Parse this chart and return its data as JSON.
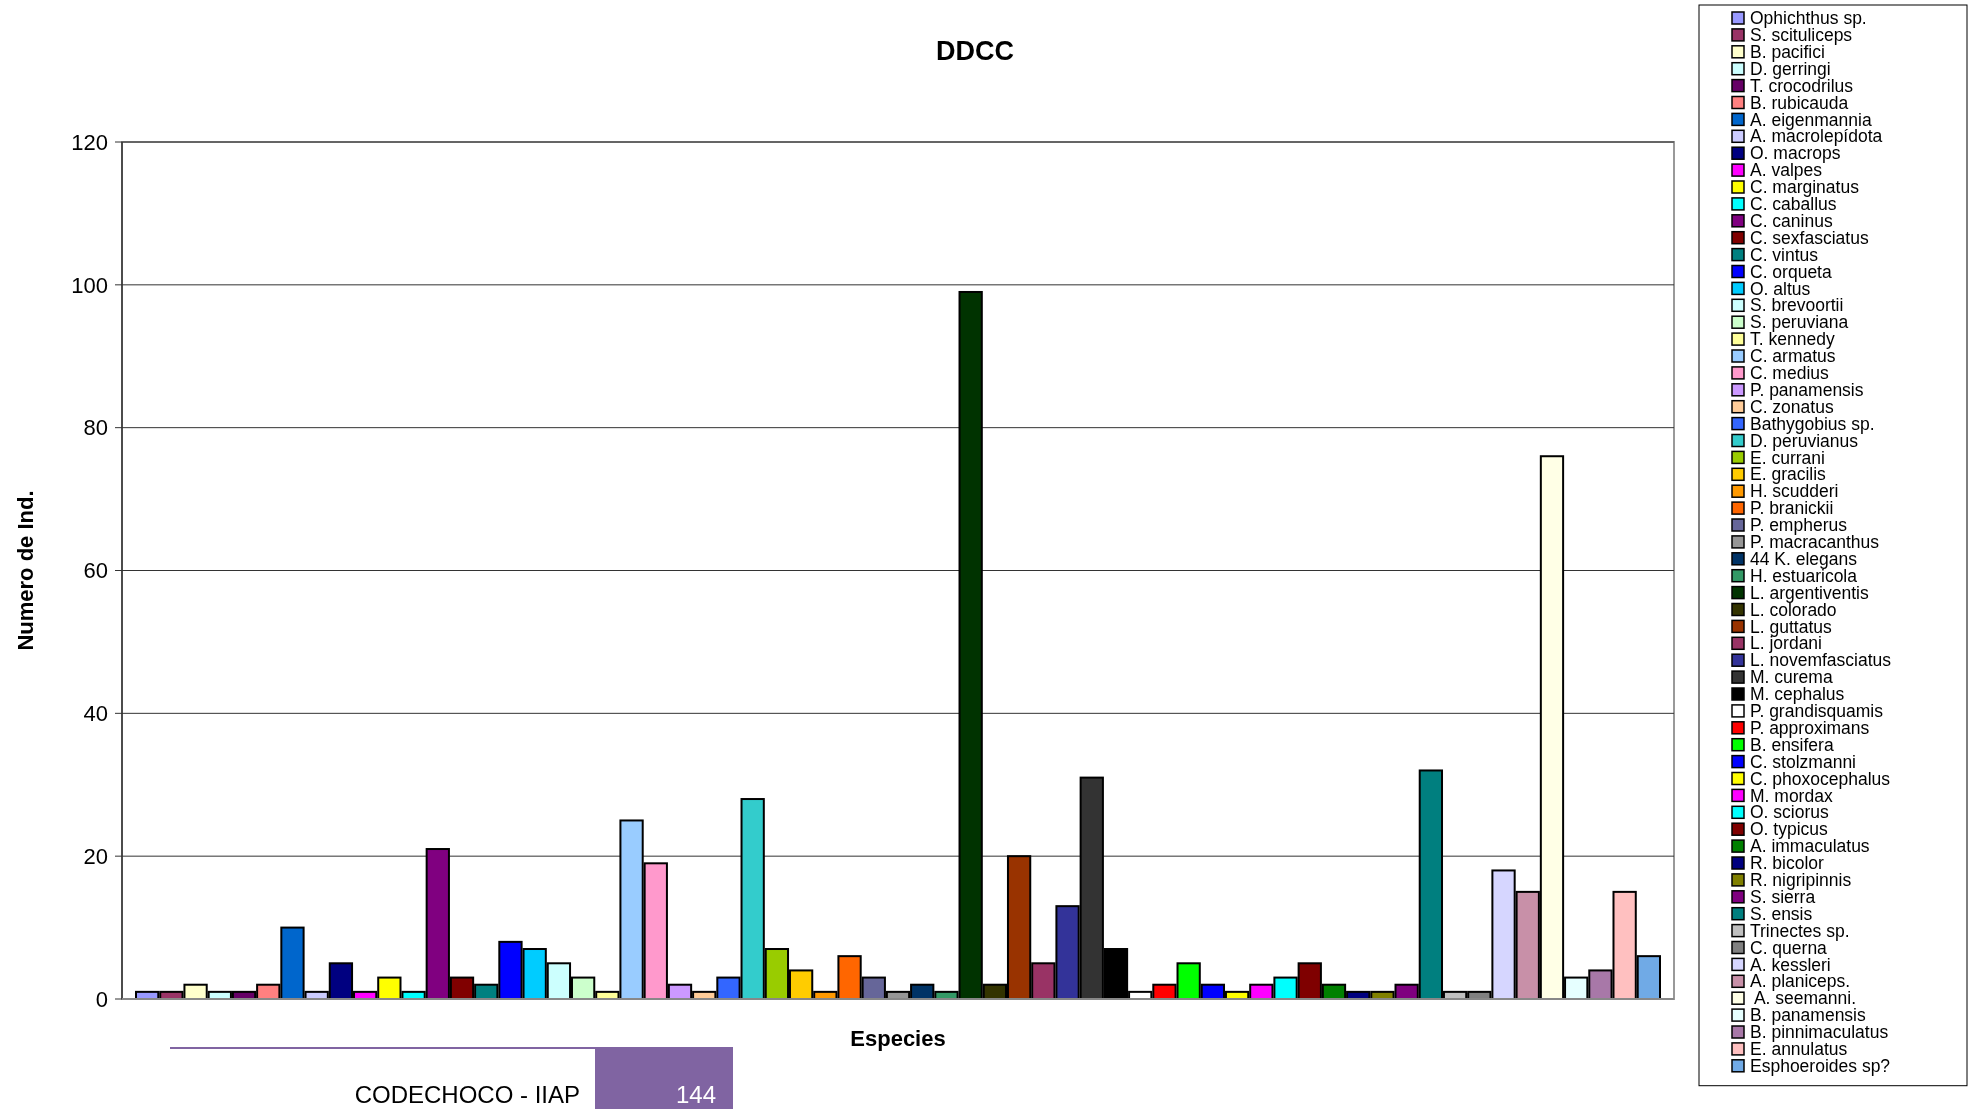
{
  "chart_data": {
    "type": "bar",
    "title": "DDCC",
    "xlabel": "Especies",
    "ylabel": "Numero de Ind.",
    "categories": [
      null
    ],
    "ylim": [
      0,
      120
    ],
    "yticks": [
      0,
      20,
      40,
      60,
      80,
      100,
      120
    ],
    "grid": "y",
    "legend": "right",
    "annotations": [
      "CODECHOCO - IIAP",
      "144"
    ],
    "series": [
      {
        "name": "Ophichthus sp.",
        "color": "#9999ff",
        "values": [
          1
        ]
      },
      {
        "name": "S. scituliceps",
        "color": "#993366",
        "values": [
          1
        ]
      },
      {
        "name": "B. pacifici",
        "color": "#ffffcc",
        "values": [
          2
        ]
      },
      {
        "name": "D. gerringi",
        "color": "#ccffff",
        "values": [
          1
        ]
      },
      {
        "name": "T. crocodrilus",
        "color": "#660066",
        "values": [
          1
        ]
      },
      {
        "name": "B. rubicauda",
        "color": "#ff8080",
        "values": [
          2
        ]
      },
      {
        "name": "A. eigenmannia",
        "color": "#0066cc",
        "values": [
          10
        ]
      },
      {
        "name": "A. macrolepídota",
        "color": "#ccccff",
        "values": [
          1
        ]
      },
      {
        "name": "O. macrops",
        "color": "#000080",
        "values": [
          5
        ]
      },
      {
        "name": "A. valpes",
        "color": "#ff00ff",
        "values": [
          1
        ]
      },
      {
        "name": "C. marginatus",
        "color": "#ffff00",
        "values": [
          3
        ]
      },
      {
        "name": "C. caballus",
        "color": "#00ffff",
        "values": [
          1
        ]
      },
      {
        "name": "C. caninus",
        "color": "#800080",
        "values": [
          21
        ]
      },
      {
        "name": "C. sexfasciatus",
        "color": "#800000",
        "values": [
          3
        ]
      },
      {
        "name": "C. vintus",
        "color": "#008080",
        "values": [
          2
        ]
      },
      {
        "name": "C. orqueta",
        "color": "#0000ff",
        "values": [
          8
        ]
      },
      {
        "name": "O. altus",
        "color": "#00ccff",
        "values": [
          7
        ]
      },
      {
        "name": "S. brevoortii",
        "color": "#ccfffe",
        "values": [
          5
        ]
      },
      {
        "name": "S. peruviana",
        "color": "#ccffcc",
        "values": [
          3
        ]
      },
      {
        "name": "T. kennedy",
        "color": "#ffff99",
        "values": [
          1
        ]
      },
      {
        "name": "C. armatus",
        "color": "#99ccff",
        "values": [
          25
        ]
      },
      {
        "name": "C. medius",
        "color": "#ff99cc",
        "values": [
          19
        ]
      },
      {
        "name": "P. panamensis",
        "color": "#cc99ff",
        "values": [
          2
        ]
      },
      {
        "name": "C. zonatus",
        "color": "#ffcc99",
        "values": [
          1
        ]
      },
      {
        "name": "Bathygobius sp.",
        "color": "#3366ff",
        "values": [
          3
        ]
      },
      {
        "name": "D. peruvianus",
        "color": "#33cccc",
        "values": [
          28
        ]
      },
      {
        "name": "E. currani",
        "color": "#99cc00",
        "values": [
          7
        ]
      },
      {
        "name": "E. gracilis",
        "color": "#ffcc00",
        "values": [
          4
        ]
      },
      {
        "name": "H. scudderi",
        "color": "#ff9900",
        "values": [
          1
        ]
      },
      {
        "name": "P. branickii",
        "color": "#ff6600",
        "values": [
          6
        ]
      },
      {
        "name": "P. empherus",
        "color": "#666699",
        "values": [
          3
        ]
      },
      {
        "name": "P. macracanthus",
        "color": "#969696",
        "values": [
          1
        ]
      },
      {
        "name": "44 K. elegans",
        "color": "#003366",
        "values": [
          2
        ]
      },
      {
        "name": "H. estuaricola",
        "color": "#339966",
        "values": [
          1
        ]
      },
      {
        "name": "L. argentiventis",
        "color": "#003300",
        "values": [
          99
        ]
      },
      {
        "name": "L. colorado",
        "color": "#333300",
        "values": [
          2
        ]
      },
      {
        "name": "L. guttatus",
        "color": "#993300",
        "values": [
          20
        ]
      },
      {
        "name": "L. jordani",
        "color": "#993365",
        "values": [
          5
        ]
      },
      {
        "name": "L. novemfasciatus",
        "color": "#333399",
        "values": [
          13
        ]
      },
      {
        "name": "M. curema",
        "color": "#333333",
        "values": [
          31
        ]
      },
      {
        "name": "M. cephalus",
        "color": "#000000",
        "values": [
          7
        ]
      },
      {
        "name": "P. grandisquamis",
        "color": "#ffffff",
        "values": [
          1
        ]
      },
      {
        "name": "P. approximans",
        "color": "#ff0000",
        "values": [
          2
        ]
      },
      {
        "name": "B. ensifera",
        "color": "#00ff00",
        "values": [
          5
        ]
      },
      {
        "name": "C. stolzmanni",
        "color": "#0000fe",
        "values": [
          2
        ]
      },
      {
        "name": "C. phoxocephalus",
        "color": "#fffe00",
        "values": [
          1
        ]
      },
      {
        "name": "M. mordax",
        "color": "#fe00ff",
        "values": [
          2
        ]
      },
      {
        "name": "O. sciorus",
        "color": "#00fffe",
        "values": [
          3
        ]
      },
      {
        "name": "O. typicus",
        "color": "#7f0000",
        "values": [
          5
        ]
      },
      {
        "name": "A. immaculatus",
        "color": "#008000",
        "values": [
          2
        ]
      },
      {
        "name": "R. bicolor",
        "color": "#00007f",
        "values": [
          1
        ]
      },
      {
        "name": "R. nigripinnis",
        "color": "#808000",
        "values": [
          1
        ]
      },
      {
        "name": "S. sierra",
        "color": "#7f007f",
        "values": [
          2
        ]
      },
      {
        "name": "S. ensis",
        "color": "#007f7f",
        "values": [
          32
        ]
      },
      {
        "name": "Trinectes sp.",
        "color": "#c0c0c0",
        "values": [
          1
        ]
      },
      {
        "name": "C. querna",
        "color": "#808080",
        "values": [
          1
        ]
      },
      {
        "name": "A. kessleri",
        "color": "#d6d6ff",
        "values": [
          18
        ]
      },
      {
        "name": "A. planiceps.",
        "color": "#c890a8",
        "values": [
          15
        ]
      },
      {
        "name": " A. seemanni.",
        "color": "#ffffe6",
        "values": [
          76
        ]
      },
      {
        "name": "B. panamensis",
        "color": "#e6ffff",
        "values": [
          3
        ]
      },
      {
        "name": "B. pinnimaculatus",
        "color": "#a878a8",
        "values": [
          4
        ]
      },
      {
        "name": "E. annulatus",
        "color": "#ffc0c0",
        "values": [
          15
        ]
      },
      {
        "name": "Esphoeroides sp?",
        "color": "#70aae6",
        "values": [
          6
        ]
      }
    ]
  }
}
